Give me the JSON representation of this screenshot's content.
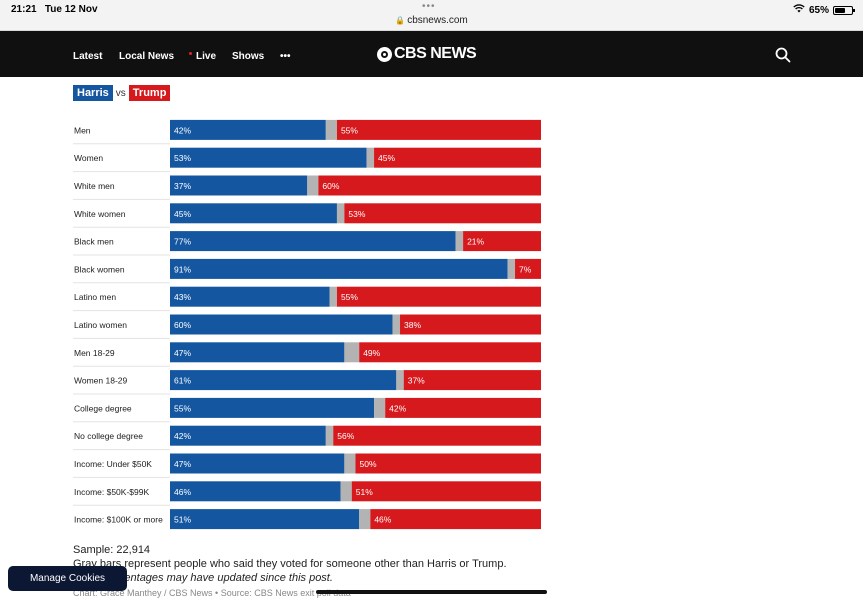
{
  "status_bar": {
    "time": "21:21",
    "date": "Tue 12 Nov",
    "url": "cbsnews.com",
    "battery": "65%",
    "battery_level": 0.65
  },
  "nav": {
    "items": [
      "Latest",
      "Local News",
      "Live",
      "Shows",
      "•••"
    ],
    "logo": "CBS NEWS",
    "search_icon": "search-icon"
  },
  "legend": {
    "harris": "Harris",
    "vs": "vs",
    "trump": "Trump"
  },
  "colors": {
    "harris": "#1457a0",
    "trump": "#d5191d",
    "other": "#b3b3b3"
  },
  "chart_data": {
    "type": "bar",
    "stacked": true,
    "orientation": "horizontal",
    "categories": [
      "Men",
      "Women",
      "White men",
      "White women",
      "Black men",
      "Black women",
      "Latino men",
      "Latino women",
      "Men 18-29",
      "Women 18-29",
      "College degree",
      "No college degree",
      "Income: Under $50K",
      "Income: $50K-$99K",
      "Income: $100K or more"
    ],
    "series": [
      {
        "name": "Harris",
        "values": [
          42,
          53,
          37,
          45,
          77,
          91,
          43,
          60,
          47,
          61,
          55,
          42,
          47,
          46,
          51
        ]
      },
      {
        "name": "Trump",
        "values": [
          55,
          45,
          60,
          53,
          21,
          7,
          55,
          38,
          49,
          37,
          42,
          56,
          50,
          51,
          46
        ]
      }
    ],
    "xlim": [
      0,
      100
    ],
    "value_suffix": "%"
  },
  "notes": {
    "sample": "Sample: 22,914",
    "gray_note": "Gray bars represent people who said they voted for someone other than Harris or Trump.",
    "updated_note": "percentages may have updated since this post.",
    "source": "Chart: Grace Manthey / CBS News • Source: CBS News exit poll data"
  },
  "cookies_button": "Manage Cookies"
}
